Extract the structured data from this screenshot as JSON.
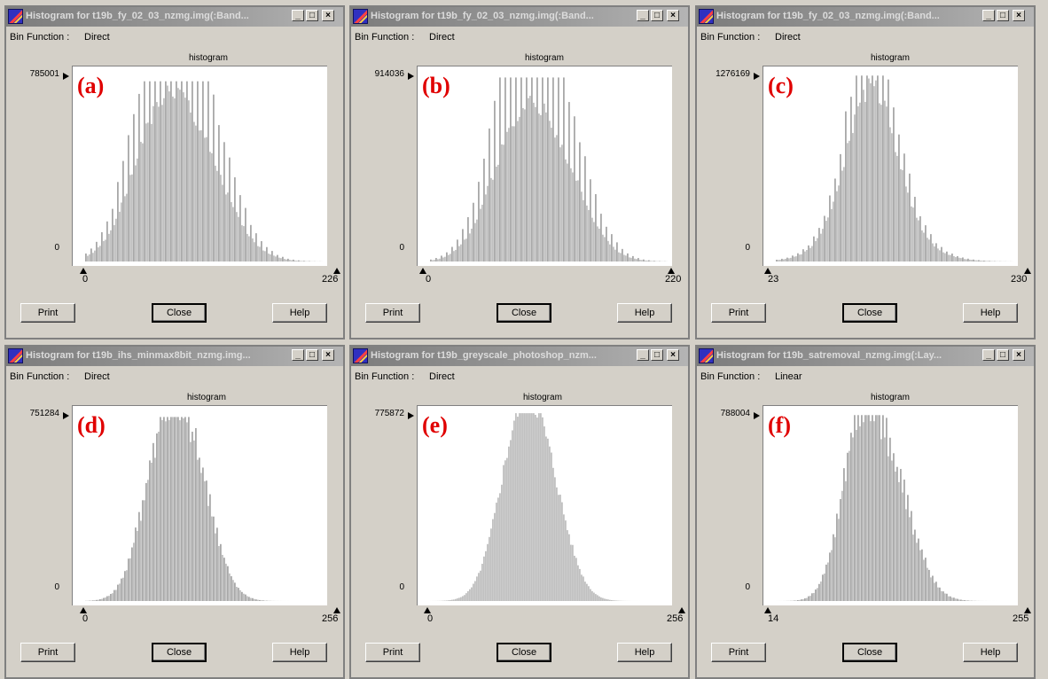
{
  "ui": {
    "bin_function_label": "Bin Function :",
    "histogram_label": "histogram",
    "print": "Print",
    "close": "Close",
    "help": "Help",
    "min_glyph": "_",
    "max_glyph": "□",
    "close_glyph": "×"
  },
  "colors": {
    "bars": "#c0c0c0",
    "bar_tops": "#a8a8a8",
    "panel_label": "#e00000",
    "title_bar": "#8a8a8a"
  },
  "windows": [
    {
      "title": "Histogram for t19b_fy_02_03_nzmg.img(:Band...",
      "bin_function": "Direct",
      "ymax": "785001",
      "ymin": "0",
      "xmin": "0",
      "xmax": "226",
      "panel_label": "(a)"
    },
    {
      "title": "Histogram for t19b_fy_02_03_nzmg.img(:Band...",
      "bin_function": "Direct",
      "ymax": "914036",
      "ymin": "0",
      "xmin": "0",
      "xmax": "220",
      "panel_label": "(b)"
    },
    {
      "title": "Histogram for t19b_fy_02_03_nzmg.img(:Band...",
      "bin_function": "Direct",
      "ymax": "1276169",
      "ymin": "0",
      "xmin": "23",
      "xmax": "230",
      "panel_label": "(c)"
    },
    {
      "title": "Histogram for t19b_ihs_minmax8bit_nzmg.img...",
      "bin_function": "Direct",
      "ymax": "751284",
      "ymin": "0",
      "xmin": "0",
      "xmax": "256",
      "panel_label": "(d)"
    },
    {
      "title": "Histogram for t19b_greyscale_photoshop_nzm...",
      "bin_function": "Direct",
      "ymax": "775872",
      "ymin": "0",
      "xmin": "0",
      "xmax": "256",
      "panel_label": "(e)"
    },
    {
      "title": "Histogram for t19b_satremoval_nzmg.img(:Lay...",
      "bin_function": "Linear",
      "ymax": "788004",
      "ymin": "0",
      "xmin": "14",
      "xmax": "255",
      "panel_label": "(f)"
    }
  ]
}
